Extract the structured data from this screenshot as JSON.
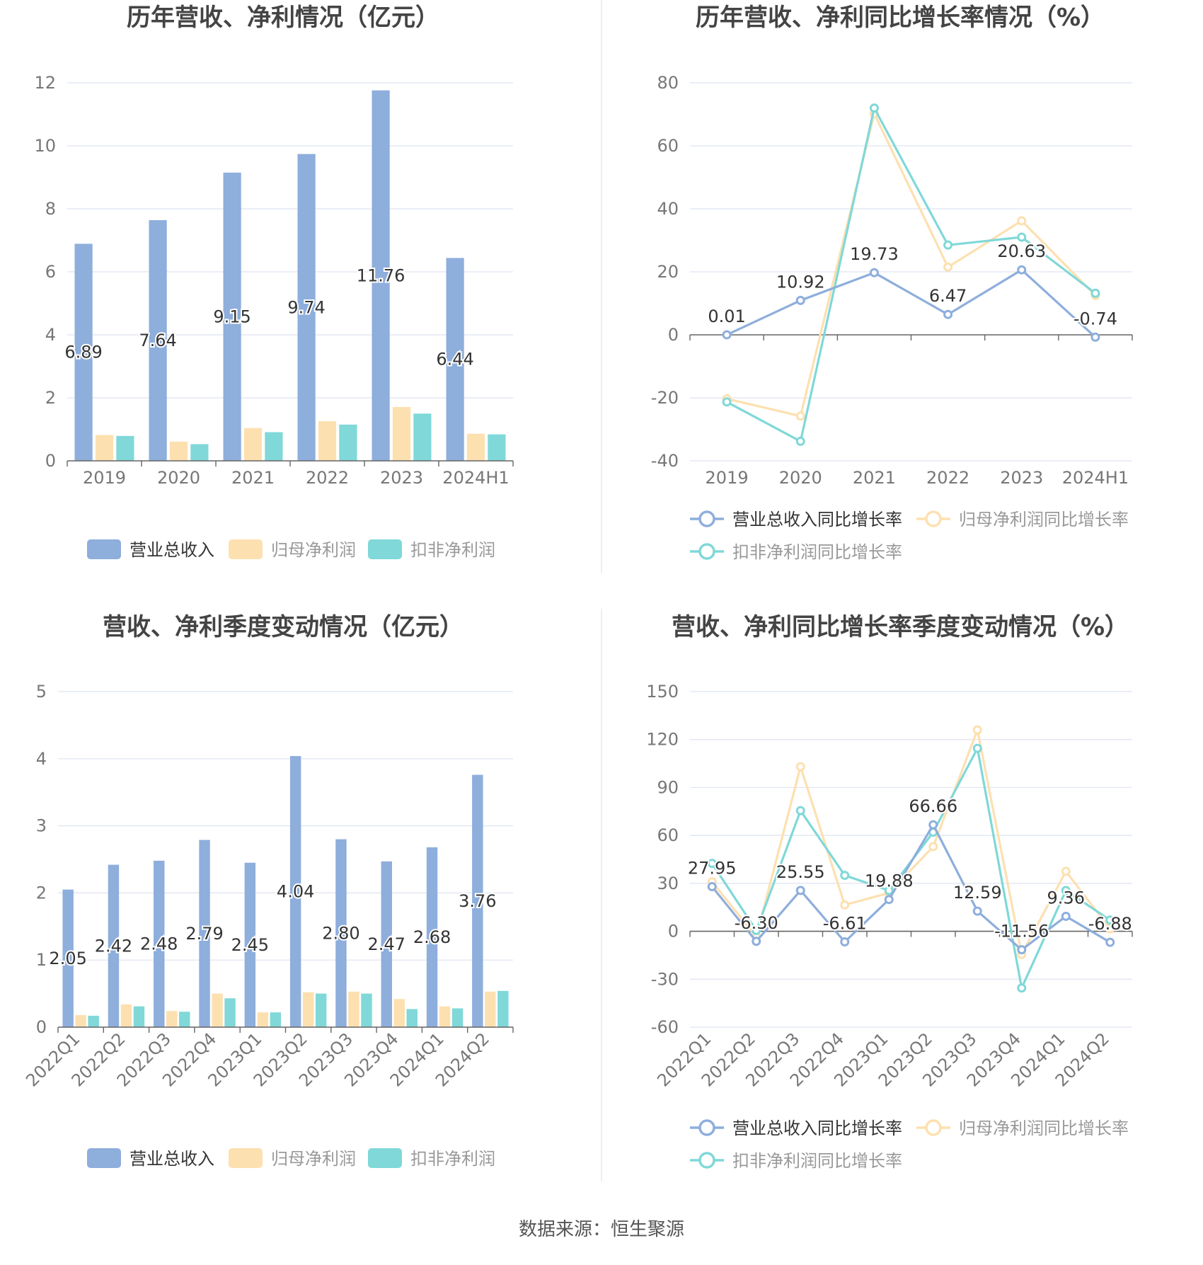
{
  "source_note": "数据来源：恒生聚源",
  "colors": {
    "revenue": "#8eaedc",
    "parent_profit": "#fde0b0",
    "deducted_profit": "#80d8d8",
    "grid": "#dde3f0",
    "axis_text": "#777777",
    "label_text": "#333333",
    "title": "#444444"
  },
  "charts": {
    "annual_amount": {
      "title": "历年营收、净利情况（亿元）",
      "legend": [
        "营业总收入",
        "归母净利润",
        "扣非净利润"
      ],
      "y_ticks": [
        "0",
        "2",
        "4",
        "6",
        "8",
        "10",
        "12"
      ],
      "chart_data": {
        "type": "bar",
        "categories": [
          "2019",
          "2020",
          "2021",
          "2022",
          "2023",
          "2024H1"
        ],
        "ylim": [
          0,
          12
        ],
        "series": [
          {
            "name": "营业总收入",
            "values": [
              6.89,
              7.64,
              9.15,
              9.74,
              11.76,
              6.44
            ],
            "labels": [
              "6.89",
              "7.64",
              "9.15",
              "9.74",
              "11.76",
              "6.44"
            ]
          },
          {
            "name": "归母净利润",
            "values": [
              0.82,
              0.61,
              1.04,
              1.26,
              1.71,
              0.86
            ]
          },
          {
            "name": "扣非净利润",
            "values": [
              0.79,
              0.53,
              0.91,
              1.15,
              1.5,
              0.84
            ]
          }
        ]
      }
    },
    "annual_growth": {
      "title": "历年营收、净利同比增长率情况（%）",
      "legend": [
        "营业总收入同比增长率",
        "归母净利润同比增长率",
        "扣非净利润同比增长率"
      ],
      "y_ticks": [
        "-40",
        "-20",
        "0",
        "20",
        "40",
        "60",
        "80"
      ],
      "chart_data": {
        "type": "line",
        "categories": [
          "2019",
          "2020",
          "2021",
          "2022",
          "2023",
          "2024H1"
        ],
        "ylim": [
          -40,
          80
        ],
        "series": [
          {
            "name": "营业总收入同比增长率",
            "values": [
              0.01,
              10.92,
              19.73,
              6.47,
              20.63,
              -0.74
            ],
            "labels": [
              "0.01",
              "10.92",
              "19.73",
              "6.47",
              "20.63",
              "-0.74"
            ]
          },
          {
            "name": "归母净利润同比增长率",
            "values": [
              -20.3,
              -25.8,
              70.2,
              21.5,
              36.2,
              12.5
            ]
          },
          {
            "name": "扣非净利润同比增长率",
            "values": [
              -21.3,
              -33.8,
              72.0,
              28.5,
              31.0,
              13.2
            ]
          }
        ]
      }
    },
    "quarterly_amount": {
      "title": "营收、净利季度变动情况（亿元）",
      "legend": [
        "营业总收入",
        "归母净利润",
        "扣非净利润"
      ],
      "y_ticks": [
        "0",
        "1",
        "2",
        "3",
        "4",
        "5"
      ],
      "chart_data": {
        "type": "bar",
        "categories": [
          "2022Q1",
          "2022Q2",
          "2022Q3",
          "2022Q4",
          "2023Q1",
          "2023Q2",
          "2023Q3",
          "2023Q4",
          "2024Q1",
          "2024Q2"
        ],
        "ylim": [
          0,
          5
        ],
        "series": [
          {
            "name": "营业总收入",
            "values": [
              2.05,
              2.42,
              2.48,
              2.79,
              2.45,
              4.04,
              2.8,
              2.47,
              2.68,
              3.76
            ],
            "labels": [
              "2.05",
              "2.42",
              "2.48",
              "2.79",
              "2.45",
              "4.04",
              "2.80",
              "2.47",
              "2.68",
              "3.76"
            ]
          },
          {
            "name": "归母净利润",
            "values": [
              0.18,
              0.34,
              0.24,
              0.5,
              0.22,
              0.52,
              0.53,
              0.42,
              0.31,
              0.53
            ]
          },
          {
            "name": "扣非净利润",
            "values": [
              0.17,
              0.31,
              0.23,
              0.43,
              0.22,
              0.5,
              0.5,
              0.27,
              0.28,
              0.54
            ]
          }
        ]
      }
    },
    "quarterly_growth": {
      "title": "营收、净利同比增长率季度变动情况（%）",
      "legend": [
        "营业总收入同比增长率",
        "归母净利润同比增长率",
        "扣非净利润同比增长率"
      ],
      "y_ticks": [
        "-60",
        "-30",
        "0",
        "30",
        "60",
        "90",
        "120",
        "150"
      ],
      "chart_data": {
        "type": "line",
        "categories": [
          "2022Q1",
          "2022Q2",
          "2022Q3",
          "2022Q4",
          "2023Q1",
          "2023Q2",
          "2023Q3",
          "2023Q4",
          "2024Q1",
          "2024Q2"
        ],
        "ylim": [
          -60,
          150
        ],
        "series": [
          {
            "name": "营业总收入同比增长率",
            "values": [
              27.95,
              -6.3,
              25.55,
              -6.61,
              19.88,
              66.66,
              12.59,
              -11.56,
              9.36,
              -6.88
            ],
            "labels": [
              "27.95",
              "-6.30",
              "25.55",
              "-6.61",
              "19.88",
              "66.66",
              "12.59",
              "-11.56",
              "9.36",
              "-6.88"
            ]
          },
          {
            "name": "归母净利润同比增长率",
            "values": [
              31.0,
              -3.5,
              103.0,
              16.5,
              24.0,
              53.0,
              126.0,
              -14.5,
              37.5,
              1.5
            ]
          },
          {
            "name": "扣非净利润同比增长率",
            "values": [
              42.5,
              0.5,
              75.5,
              35.0,
              25.5,
              62.0,
              114.5,
              -35.5,
              25.5,
              7.0
            ]
          }
        ]
      }
    }
  }
}
